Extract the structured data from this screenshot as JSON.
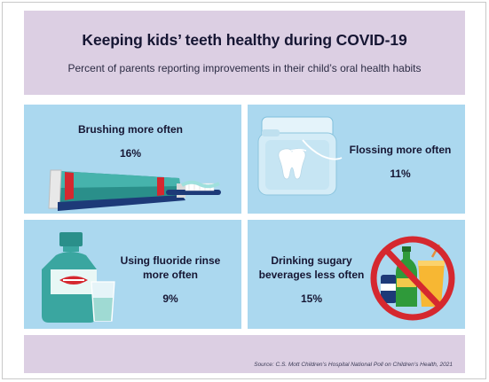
{
  "header": {
    "title": "Keeping kids’ teeth healthy during COVID-19",
    "subtitle": "Percent of parents reporting improvements in their child’s oral health habits"
  },
  "panels": [
    {
      "label": "Brushing more often",
      "value": "16%",
      "icon": "toothpaste-toothbrush-icon"
    },
    {
      "label": "Flossing more often",
      "value": "11%",
      "icon": "floss-tooth-icon"
    },
    {
      "label_line1": "Using fluoride rinse",
      "label_line2": "more often",
      "value": "9%",
      "icon": "mouthwash-cup-icon"
    },
    {
      "label_line1": "Drinking sugary",
      "label_line2": "beverages less often",
      "value": "15%",
      "icon": "no-sugary-drinks-icon"
    }
  ],
  "footer": {
    "source": "Source: C.S. Mott Children’s Hospital National Poll on Children’s Health, 2021"
  },
  "colors": {
    "header_bg": "#dccfe3",
    "panel_bg": "#abd8ef",
    "text": "#161633",
    "toothpaste_teal": "#3aa6a0",
    "accent_red": "#d5282f",
    "navy": "#1d3a78"
  }
}
